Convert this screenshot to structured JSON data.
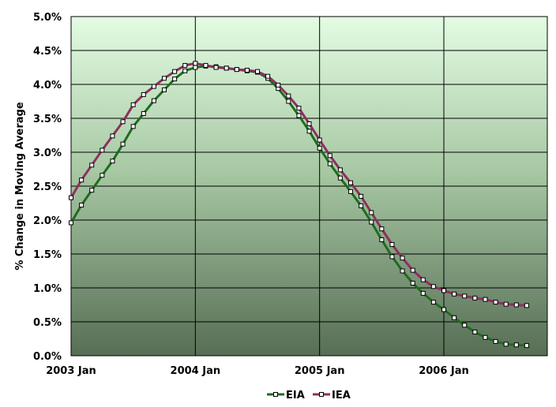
{
  "chart_data": {
    "type": "line",
    "title": "",
    "xlabel": "",
    "ylabel": "% Change in Moving Average",
    "x_tick_labels": [
      "2003 Jan",
      "2004 Jan",
      "2005 Jan",
      "2006 Jan"
    ],
    "y_tick_labels": [
      "0.0%",
      "0.5%",
      "1.0%",
      "1.5%",
      "2.0%",
      "2.5%",
      "3.0%",
      "3.5%",
      "4.0%",
      "4.5%",
      "5.0%"
    ],
    "ylim": [
      0,
      5
    ],
    "y_unit": "%",
    "xlim": [
      "2003-01",
      "2006-09"
    ],
    "grid": true,
    "legend_position": "bottom",
    "x": [
      "2003-01",
      "2003-02",
      "2003-03",
      "2003-04",
      "2003-05",
      "2003-06",
      "2003-07",
      "2003-08",
      "2003-09",
      "2003-10",
      "2003-11",
      "2003-12",
      "2004-01",
      "2004-02",
      "2004-03",
      "2004-04",
      "2004-05",
      "2004-06",
      "2004-07",
      "2004-08",
      "2004-09",
      "2004-10",
      "2004-11",
      "2004-12",
      "2005-01",
      "2005-02",
      "2005-03",
      "2005-04",
      "2005-05",
      "2005-06",
      "2005-07",
      "2005-08",
      "2005-09",
      "2005-10",
      "2005-11",
      "2005-12",
      "2006-01",
      "2006-02",
      "2006-03",
      "2006-04",
      "2006-05",
      "2006-06",
      "2006-07",
      "2006-08",
      "2006-09"
    ],
    "series": [
      {
        "name": "EIA",
        "color": "#1f6b1f",
        "values": [
          1.96,
          2.22,
          2.44,
          2.66,
          2.87,
          3.12,
          3.38,
          3.57,
          3.76,
          3.92,
          4.08,
          4.2,
          4.25,
          4.27,
          4.26,
          4.24,
          4.22,
          4.2,
          4.18,
          4.09,
          3.94,
          3.75,
          3.54,
          3.31,
          3.06,
          2.83,
          2.62,
          2.42,
          2.21,
          1.97,
          1.71,
          1.46,
          1.25,
          1.07,
          0.92,
          0.79,
          0.68,
          0.56,
          0.45,
          0.35,
          0.27,
          0.21,
          0.17,
          0.16,
          0.15
        ]
      },
      {
        "name": "IEA",
        "color": "#8e2f5e",
        "values": [
          2.33,
          2.59,
          2.81,
          3.03,
          3.24,
          3.45,
          3.7,
          3.85,
          3.97,
          4.09,
          4.19,
          4.28,
          4.31,
          4.28,
          4.25,
          4.24,
          4.22,
          4.21,
          4.19,
          4.12,
          3.99,
          3.83,
          3.65,
          3.42,
          3.18,
          2.95,
          2.74,
          2.55,
          2.35,
          2.11,
          1.87,
          1.64,
          1.44,
          1.26,
          1.12,
          1.02,
          0.96,
          0.91,
          0.88,
          0.85,
          0.83,
          0.79,
          0.76,
          0.75,
          0.74
        ]
      }
    ]
  }
}
